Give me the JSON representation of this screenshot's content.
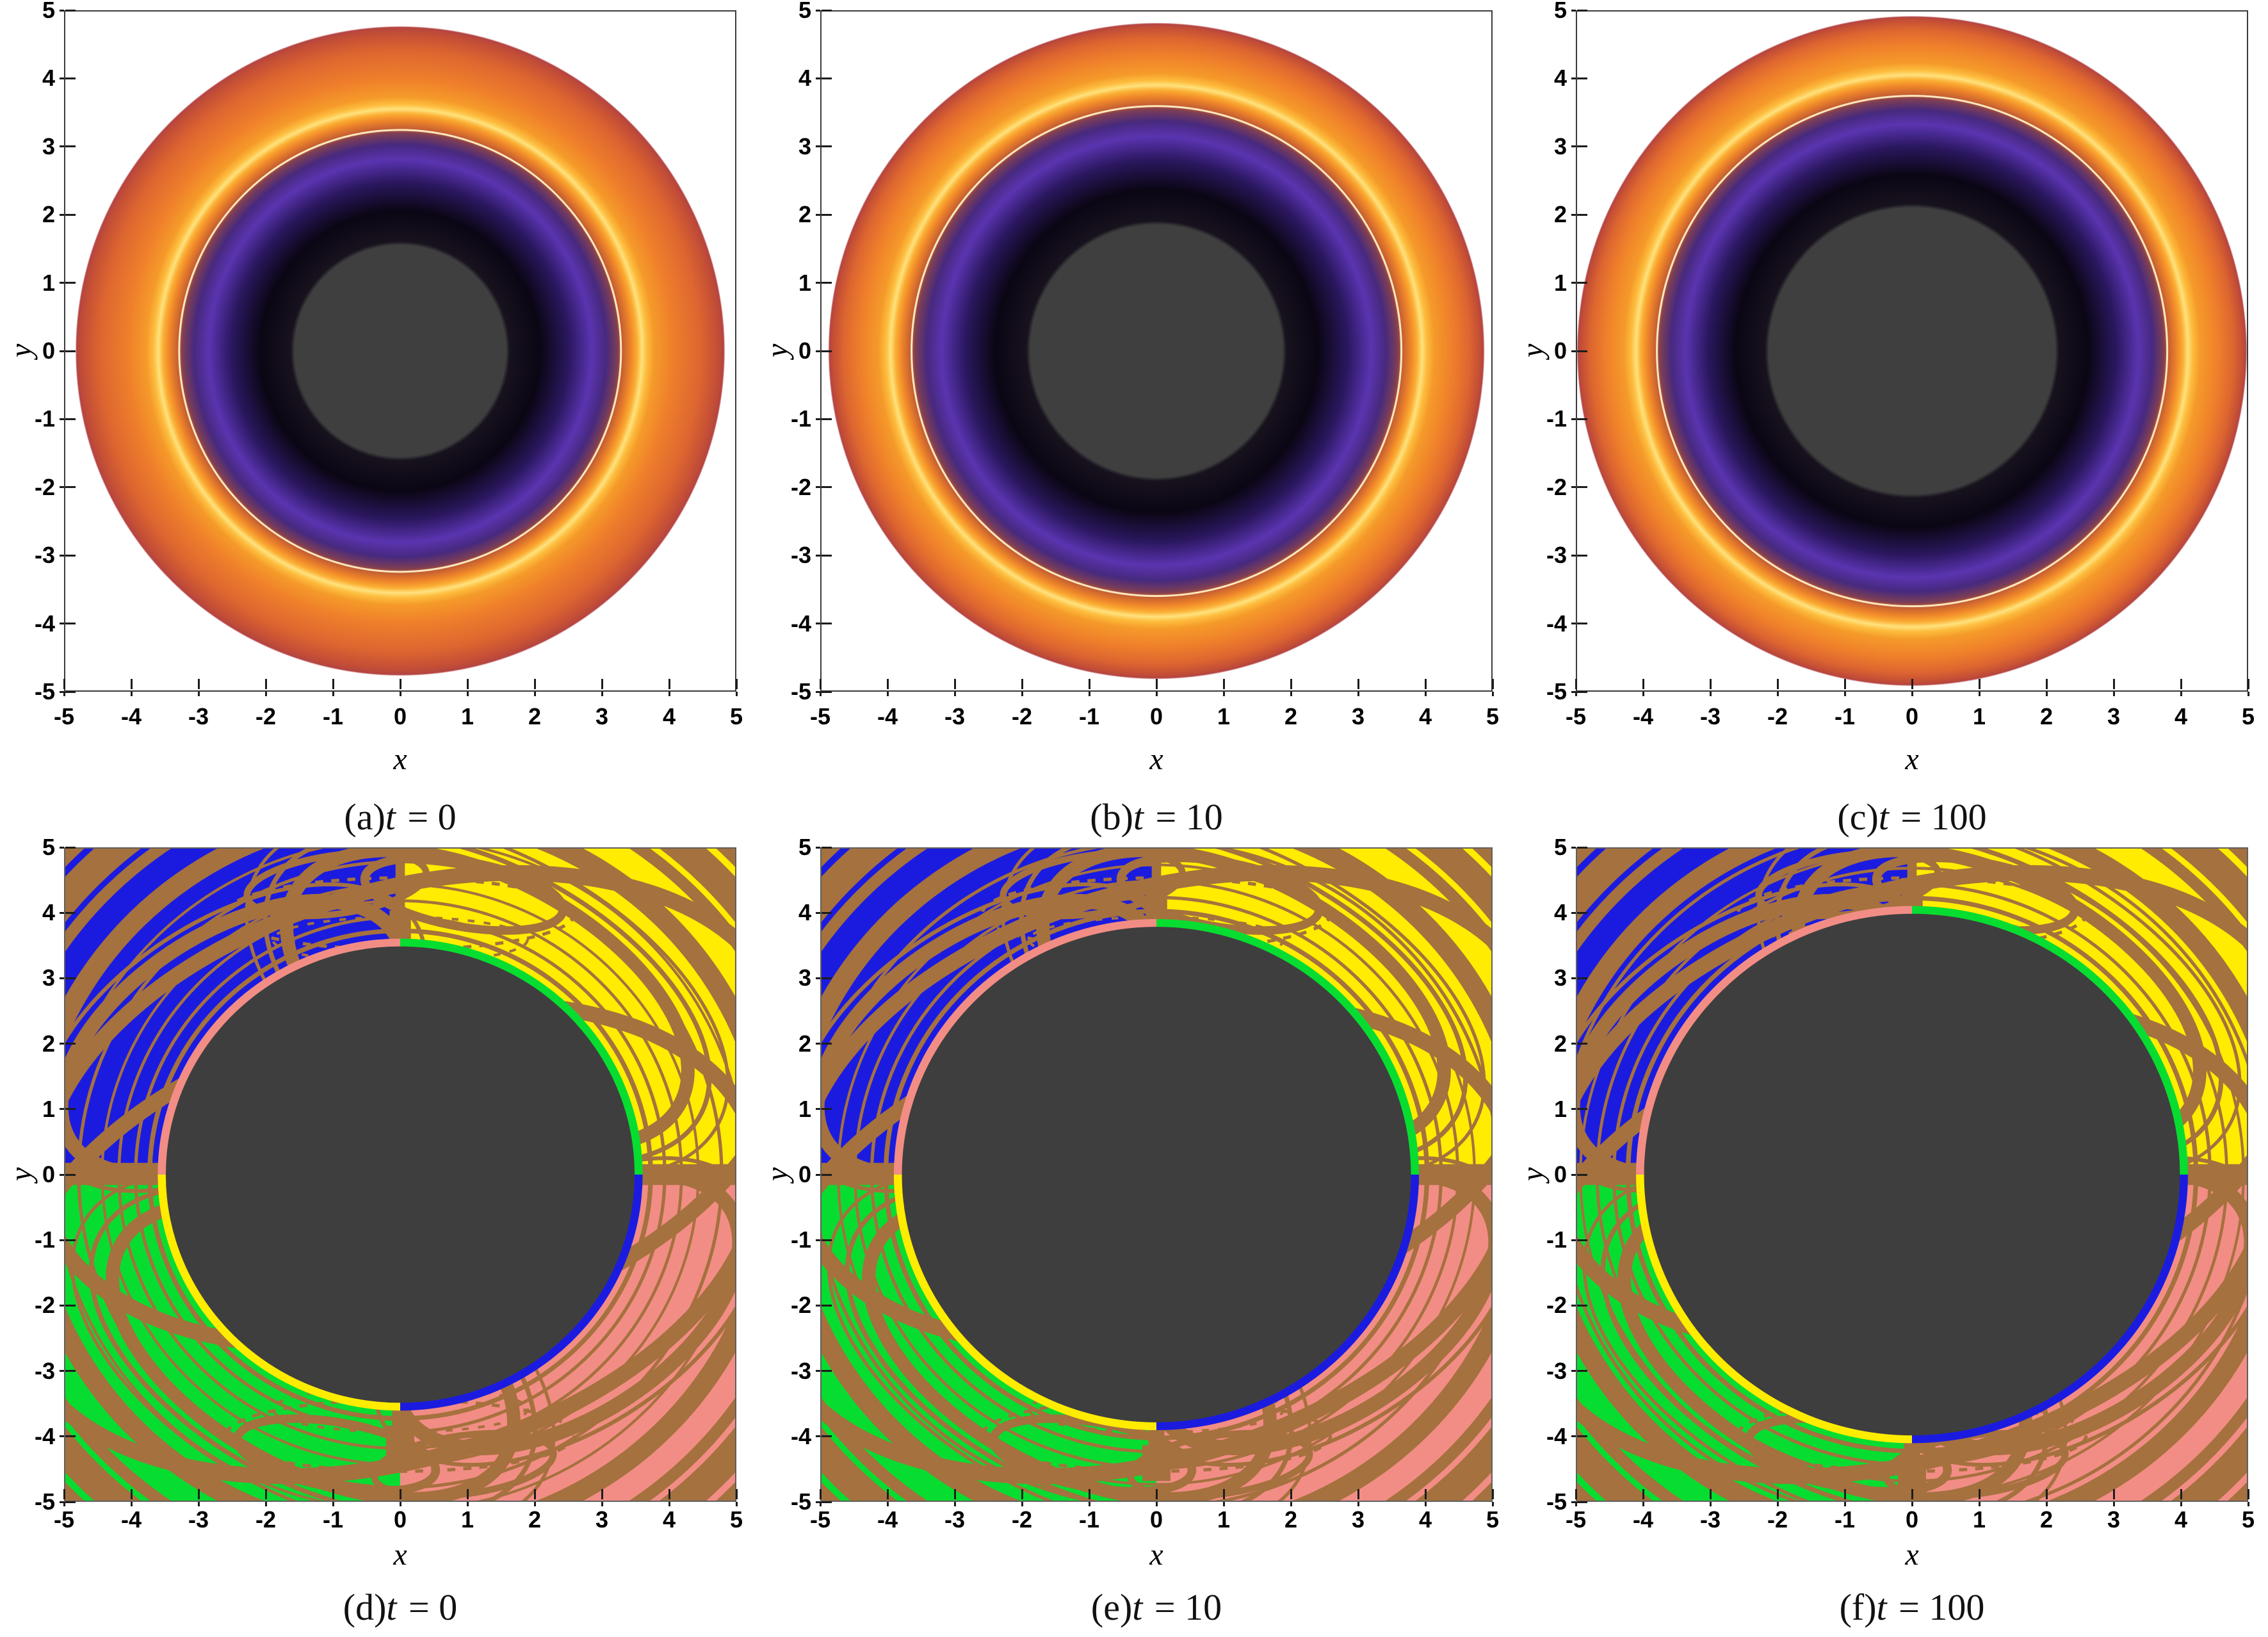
{
  "axes": {
    "x_label": "x",
    "y_label": "y",
    "tick_labels": [
      "-5",
      "-4",
      "-3",
      "-2",
      "-1",
      "0",
      "1",
      "2",
      "3",
      "4",
      "5"
    ],
    "x_range": [
      -5,
      5
    ],
    "y_range": [
      -5,
      5
    ]
  },
  "colors": {
    "basin_blue": "#1b1be0",
    "basin_yellow": "#ffec00",
    "basin_green": "#07dd30",
    "basin_pink": "#f28d85",
    "boundary_brown": "#a5713e",
    "shadow_gray": "#3e3e3e",
    "ring_bright": "#ffe27d",
    "disk_orange": "#ef7f2b",
    "disk_rim": "#b44442",
    "inner_purple": "#5a34b0",
    "frame": "#3c3c3c"
  },
  "panels": [
    {
      "row": "top",
      "caption_label": "(a)",
      "caption_var": "t",
      "caption_eq": " = 0",
      "time": 0,
      "shadow_radius": 1.55,
      "photon_ring_radius": 3.55,
      "disk_outer_radius": 4.75
    },
    {
      "row": "top",
      "caption_label": "(b)",
      "caption_var": "t",
      "caption_eq": " = 10",
      "time": 10,
      "shadow_radius": 1.85,
      "photon_ring_radius": 3.9,
      "disk_outer_radius": 4.8
    },
    {
      "row": "top",
      "caption_label": "(c)",
      "caption_var": "t",
      "caption_eq": " = 100",
      "time": 100,
      "shadow_radius": 2.1,
      "photon_ring_radius": 4.05,
      "disk_outer_radius": 4.9
    },
    {
      "row": "bottom",
      "caption_label": "(d)",
      "caption_var": "t",
      "caption_eq": " = 0",
      "time": 0,
      "shadow_radius": 3.5
    },
    {
      "row": "bottom",
      "caption_label": "(e)",
      "caption_var": "t",
      "caption_eq": " = 10",
      "time": 10,
      "shadow_radius": 3.8
    },
    {
      "row": "bottom",
      "caption_label": "(f)",
      "caption_var": "t",
      "caption_eq": " = 100",
      "time": 100,
      "shadow_radius": 4.0
    }
  ],
  "chart_data": [
    {
      "panel": "(a)",
      "type": "heatmap",
      "plot": "black-hole shadow with accretion-disk intensity",
      "title": "(a) t = 0",
      "t": 0,
      "xlabel": "x",
      "ylabel": "y",
      "xlim": [
        -5,
        5
      ],
      "ylim": [
        -5,
        5
      ],
      "shadow_radius": 1.55,
      "photon_ring_radius": 3.55,
      "disk_outer_radius": 4.75,
      "palette": "gray core, black/purple interior, bright yellow-orange photon ring, orange disk fading to dark red rim"
    },
    {
      "panel": "(b)",
      "type": "heatmap",
      "plot": "black-hole shadow with accretion-disk intensity",
      "title": "(b) t = 10",
      "t": 10,
      "xlabel": "x",
      "ylabel": "y",
      "xlim": [
        -5,
        5
      ],
      "ylim": [
        -5,
        5
      ],
      "shadow_radius": 1.85,
      "photon_ring_radius": 3.9,
      "disk_outer_radius": 4.8,
      "palette": "gray core, black/purple interior, bright yellow-orange photon ring, orange disk fading to dark red rim"
    },
    {
      "panel": "(c)",
      "type": "heatmap",
      "plot": "black-hole shadow with accretion-disk intensity",
      "title": "(c) t = 100",
      "t": 100,
      "xlabel": "x",
      "ylabel": "y",
      "xlim": [
        -5,
        5
      ],
      "ylim": [
        -5,
        5
      ],
      "shadow_radius": 2.1,
      "photon_ring_radius": 4.05,
      "disk_outer_radius": 4.9,
      "palette": "gray core, black/purple interior, bright yellow-orange photon ring, orange disk fading to dark red rim"
    },
    {
      "panel": "(d)",
      "type": "heatmap",
      "plot": "photon escape basins around shadow",
      "title": "(d) t = 0",
      "t": 0,
      "xlabel": "x",
      "ylabel": "y",
      "xlim": [
        -5,
        5
      ],
      "ylim": [
        -5,
        5
      ],
      "shadow_radius": 3.5,
      "basins": [
        "blue: upper-left quadrant",
        "yellow: upper-right quadrant",
        "green: lower-left quadrant",
        "pink: lower-right quadrant",
        "brown: fractal basin boundaries",
        "dark gray: captured (shadow)"
      ]
    },
    {
      "panel": "(e)",
      "type": "heatmap",
      "plot": "photon escape basins around shadow",
      "title": "(e) t = 10",
      "t": 10,
      "xlabel": "x",
      "ylabel": "y",
      "xlim": [
        -5,
        5
      ],
      "ylim": [
        -5,
        5
      ],
      "shadow_radius": 3.8,
      "basins": [
        "blue: upper-left quadrant",
        "yellow: upper-right quadrant",
        "green: lower-left quadrant",
        "pink: lower-right quadrant",
        "brown: fractal basin boundaries",
        "dark gray: captured (shadow)"
      ]
    },
    {
      "panel": "(f)",
      "type": "heatmap",
      "plot": "photon escape basins around shadow",
      "title": "(f) t = 100",
      "t": 100,
      "xlabel": "x",
      "ylabel": "y",
      "xlim": [
        -5,
        5
      ],
      "ylim": [
        -5,
        5
      ],
      "shadow_radius": 4.0,
      "basins": [
        "blue: upper-left quadrant",
        "yellow: upper-right quadrant",
        "green: lower-left quadrant",
        "pink: lower-right quadrant",
        "brown: fractal basin boundaries",
        "dark gray: captured (shadow)"
      ]
    }
  ]
}
